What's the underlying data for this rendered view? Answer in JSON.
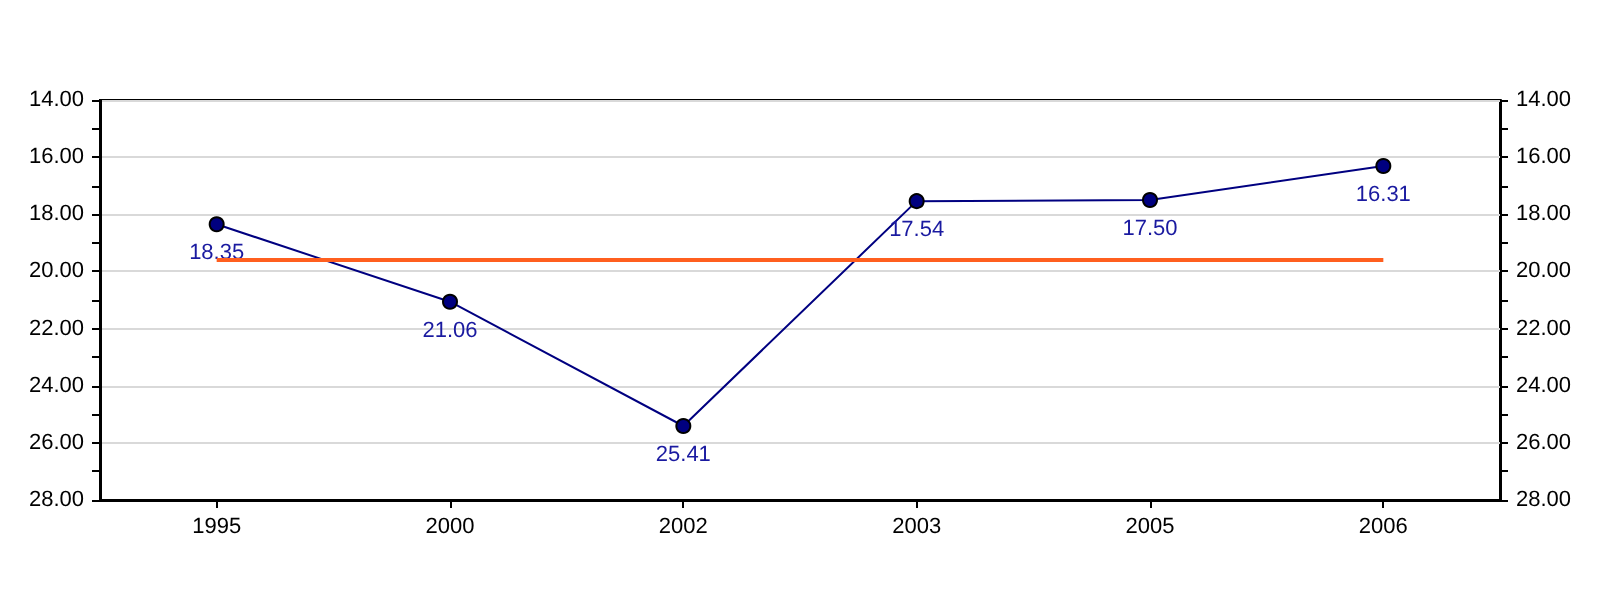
{
  "chart_data": {
    "type": "line",
    "categories": [
      "1995",
      "2000",
      "2002",
      "2003",
      "2005",
      "2006"
    ],
    "series": [
      {
        "color": "#000080",
        "values": [
          18.35,
          21.06,
          25.41,
          17.54,
          17.5,
          16.31
        ]
      }
    ],
    "value_labels": [
      "18.35",
      "21.06",
      "25.41",
      "17.54",
      "17.50",
      "16.31"
    ],
    "marker": "circle",
    "line_style": "solid",
    "grid": "y",
    "ylim": [
      28,
      14
    ],
    "yticks": [
      {
        "value": 14,
        "label": "14.00"
      },
      {
        "value": 15,
        "label": null
      },
      {
        "value": 16,
        "label": "16.00"
      },
      {
        "value": 17,
        "label": null
      },
      {
        "value": 18,
        "label": "18.00"
      },
      {
        "value": 19,
        "label": null
      },
      {
        "value": 20,
        "label": "20.00"
      },
      {
        "value": 21,
        "label": null
      },
      {
        "value": 22,
        "label": "22.00"
      },
      {
        "value": 23,
        "label": null
      },
      {
        "value": 24,
        "label": "24.00"
      },
      {
        "value": 25,
        "label": null
      },
      {
        "value": 26,
        "label": "26.00"
      },
      {
        "value": 27,
        "label": null
      },
      {
        "value": 28,
        "label": "28.00"
      }
    ],
    "y2lim": [
      28,
      14
    ],
    "y2ticks": [
      {
        "value": 14,
        "label": "14.00"
      },
      {
        "value": 15,
        "label": null
      },
      {
        "value": 16,
        "label": "16.00"
      },
      {
        "value": 17,
        "label": null
      },
      {
        "value": 18,
        "label": "18.00"
      },
      {
        "value": 19,
        "label": null
      },
      {
        "value": 20,
        "label": "20.00"
      },
      {
        "value": 21,
        "label": null
      },
      {
        "value": 22,
        "label": "22.00"
      },
      {
        "value": 23,
        "label": null
      },
      {
        "value": 24,
        "label": "24.00"
      },
      {
        "value": 25,
        "label": null
      },
      {
        "value": 26,
        "label": "26.00"
      },
      {
        "value": 27,
        "label": null
      },
      {
        "value": 28,
        "label": "28.00"
      }
    ],
    "ref_lines": [
      {
        "axis": "y",
        "value": 19.6,
        "color": "#ff5f1f"
      }
    ]
  }
}
